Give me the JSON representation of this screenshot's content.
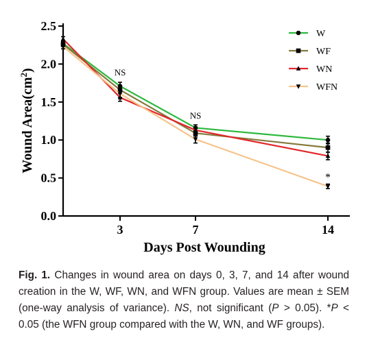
{
  "chart_data": {
    "type": "line",
    "title": "",
    "xlabel": "Days Post Wounding",
    "ylabel": "Wound Area(cm²)",
    "ylabel_base": "Wound Area(cm",
    "ylabel_sup": "2",
    "ylabel_close": ")",
    "x": [
      0,
      3,
      7,
      14
    ],
    "xticks": [
      "3",
      "7",
      "14"
    ],
    "xtick_values": [
      3,
      7,
      14
    ],
    "ylim": [
      0.0,
      2.5
    ],
    "yticks": [
      "0.0",
      "0.5",
      "1.0",
      "1.5",
      "2.0",
      "2.5"
    ],
    "ytick_values": [
      0.0,
      0.5,
      1.0,
      1.5,
      2.0,
      2.5
    ],
    "grid": false,
    "legend": "top-right",
    "series": [
      {
        "name": "W",
        "color": "#2db83d",
        "marker": "circle",
        "values": [
          2.27,
          1.71,
          1.16,
          1.0
        ],
        "sem": [
          0.03,
          0.05,
          0.04,
          0.05
        ]
      },
      {
        "name": "WF",
        "color": "#847a3c",
        "marker": "square",
        "values": [
          2.26,
          1.66,
          1.09,
          0.9
        ],
        "sem": [
          0.03,
          0.05,
          0.04,
          0.06
        ]
      },
      {
        "name": "WN",
        "color": "#e0272b",
        "marker": "triangle",
        "values": [
          2.33,
          1.56,
          1.13,
          0.79
        ],
        "sem": [
          0.03,
          0.05,
          0.04,
          0.05
        ]
      },
      {
        "name": "WFN",
        "color": "#f6c48c",
        "marker": "tri-down",
        "values": [
          2.23,
          1.61,
          1.01,
          0.39
        ],
        "sem": [
          0.03,
          0.05,
          0.05,
          0.03
        ]
      }
    ],
    "annotations": [
      {
        "text": "NS",
        "x": 0,
        "y": 1.85
      },
      {
        "text": "NS",
        "x": 7,
        "y": 1.28
      },
      {
        "text": "*",
        "x": 14,
        "y": 0.5
      }
    ]
  },
  "caption": {
    "label": "Fig. 1.",
    "p1": " Changes in wound area on days 0, 3, 7, and 14 after wound creation in the W, WF, WN, and WFN group. Values are mean ± SEM (one-way analysis of variance). ",
    "ns": "NS",
    "p2": ", not significant (",
    "p": "P",
    "p3": " > 0.05). *",
    "p_star": "P",
    "p4": " < 0.05 (the WFN group compared with the W, WN, and WF groups)."
  }
}
